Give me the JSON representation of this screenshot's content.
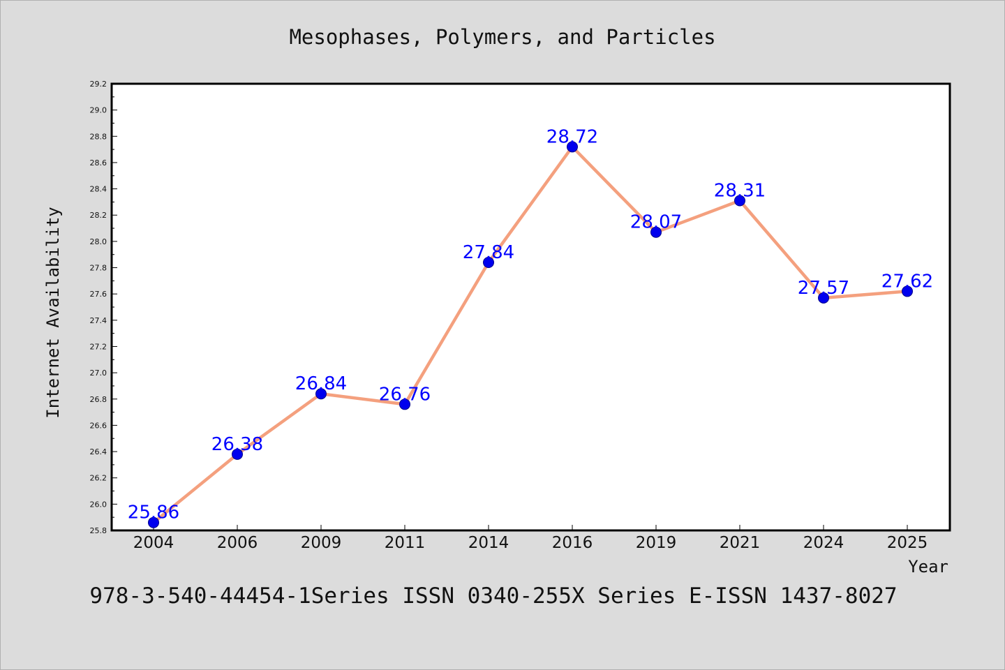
{
  "chart_data": {
    "type": "line",
    "title": "Mesophases, Polymers, and Particles",
    "xlabel": "Year",
    "ylabel": "Internet Availability",
    "categories": [
      "2004",
      "2006",
      "2009",
      "2011",
      "2014",
      "2016",
      "2019",
      "2021",
      "2024",
      "2025"
    ],
    "series": [
      {
        "values": [
          25.86,
          26.38,
          26.84,
          26.76,
          27.84,
          28.72,
          28.07,
          28.31,
          27.57,
          27.62
        ]
      }
    ],
    "ylim": [
      25.8,
      29.2
    ],
    "yticks": [
      "25.8",
      "26.0",
      "26.2",
      "26.4",
      "26.6",
      "26.8",
      "27.0",
      "27.2",
      "27.4",
      "27.6",
      "27.8",
      "28.0",
      "28.2",
      "28.4",
      "28.6",
      "28.8",
      "29.0",
      "29.2"
    ],
    "data_labels": [
      "25.86",
      "26.38",
      "26.84",
      "26.76",
      "27.84",
      "28.72",
      "28.07",
      "28.31",
      "27.57",
      "27.62"
    ],
    "grid": false,
    "colors": {
      "line": "#f4a07e",
      "marker": "#0000ee",
      "label": "#0000ff",
      "background": "#dcdcdc",
      "plot_background": "#ffffff"
    }
  },
  "footer": "978-3-540-44454-1Series ISSN 0340-255X Series E-ISSN 1437-8027"
}
